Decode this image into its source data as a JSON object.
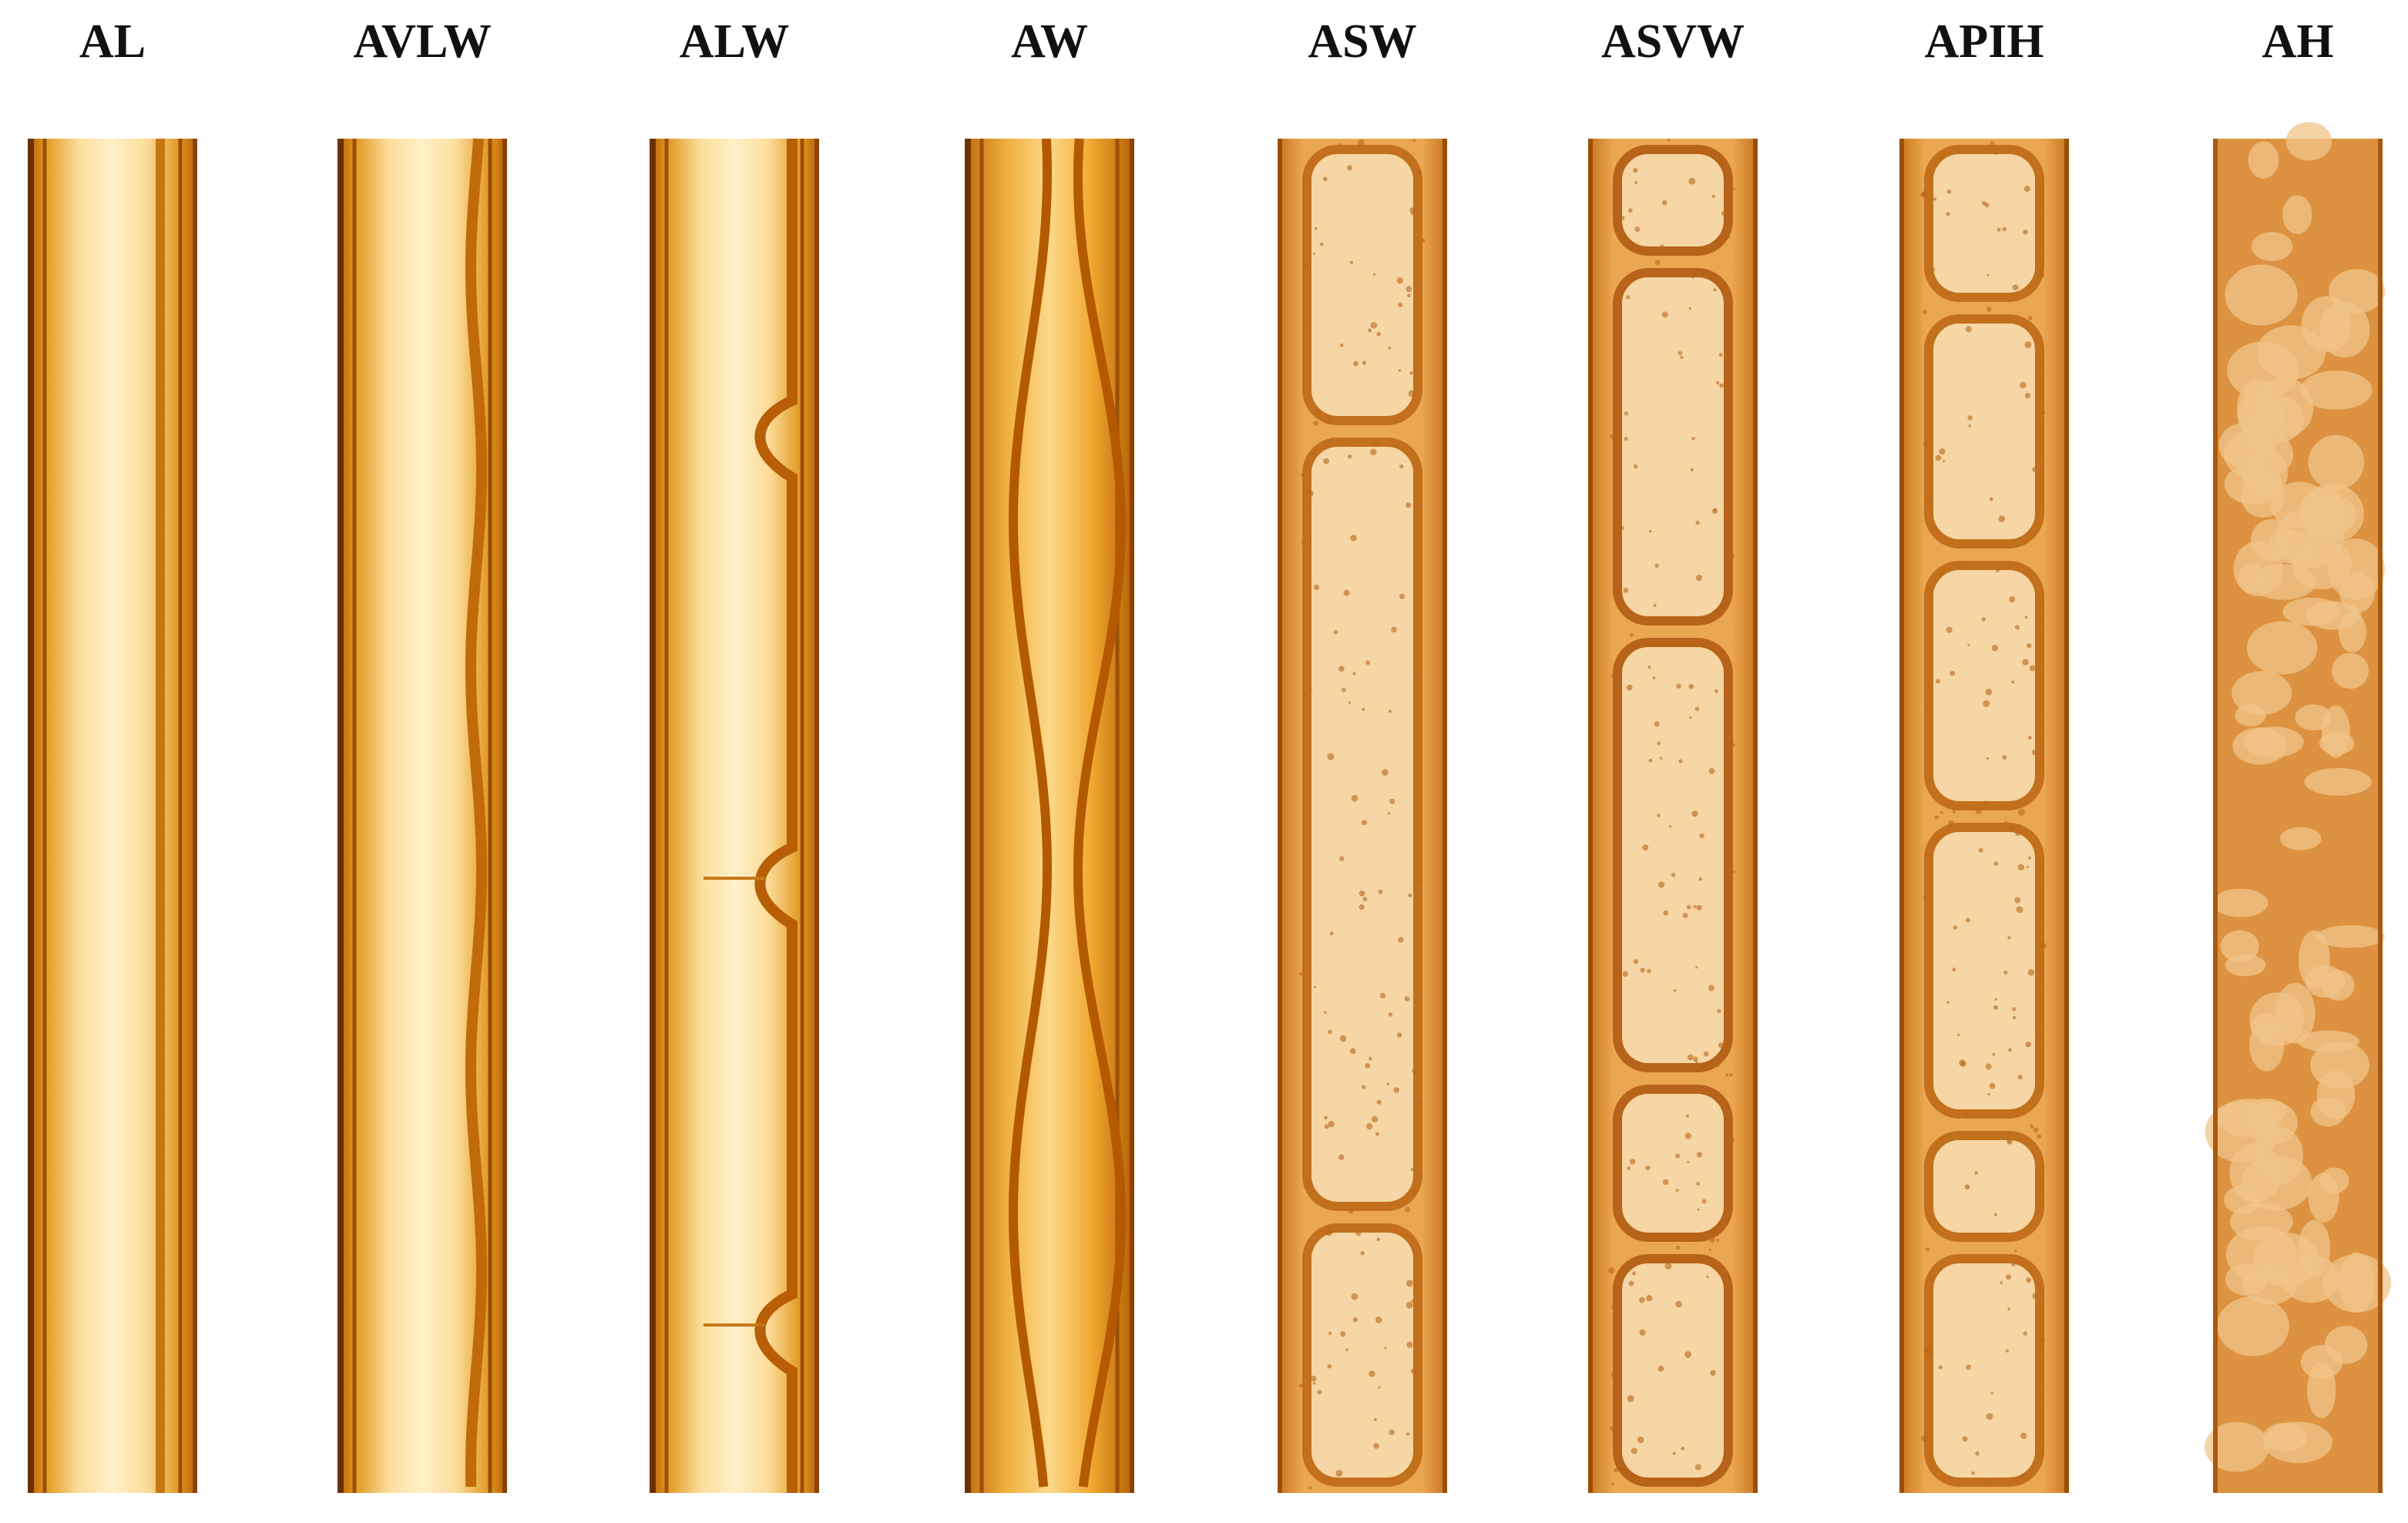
{
  "labels": [
    "AL",
    "AVLW",
    "ALW",
    "AW",
    "ASW",
    "ASVW",
    "APIH",
    "AH"
  ]
}
